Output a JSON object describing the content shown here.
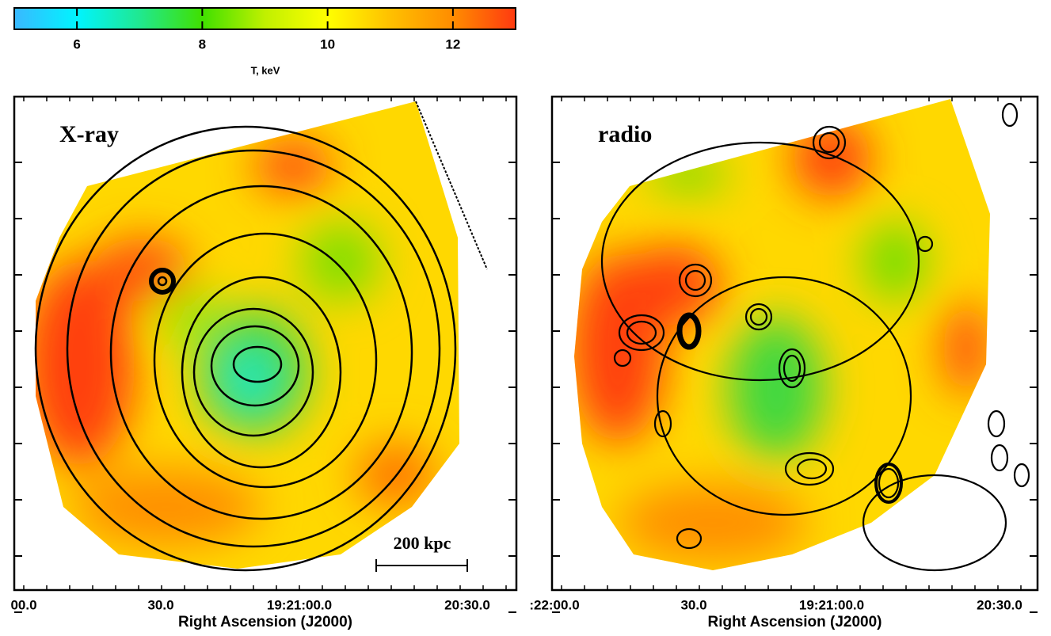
{
  "colorbar": {
    "lim": [
      5,
      13
    ],
    "ticks": [
      6,
      8,
      10,
      12
    ],
    "label": "T, keV"
  },
  "panels": [
    {
      "label": "X-ray",
      "x_tick_labels": [
        "00.0",
        "30.0",
        "19:21:00.0",
        "20:30.0"
      ],
      "x_axis_title": "Right Ascension (J2000)",
      "scale_bar": "200 kpc"
    },
    {
      "label": "radio",
      "x_tick_labels": [
        ":22:00.0",
        "30.0",
        "19:21:00.0",
        "20:30.0"
      ],
      "x_axis_title": "Right Ascension (J2000)"
    }
  ]
}
